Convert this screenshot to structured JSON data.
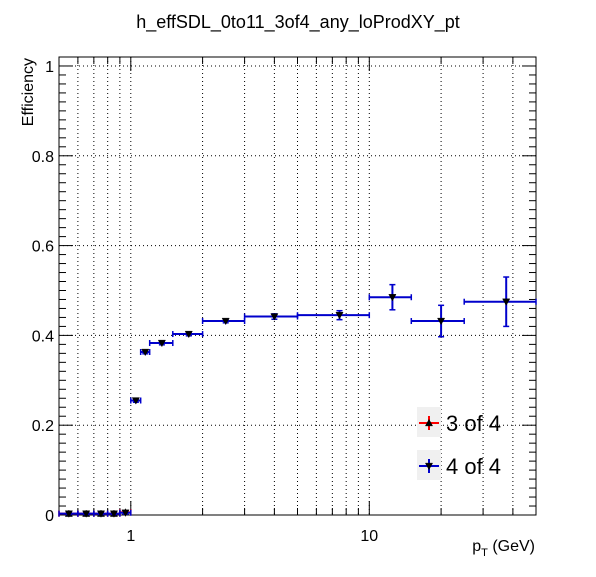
{
  "chart_data": {
    "type": "scatter",
    "title": "h_effSDL_0to11_3of4_any_loProdXY_pt",
    "xlabel_main": "p",
    "xlabel_sub": "T",
    "xlabel_unit": " (GeV)",
    "ylabel": "Efficiency",
    "xscale": "log",
    "xlim": [
      0.5,
      50
    ],
    "ylim": [
      0,
      1.02
    ],
    "grid": true,
    "x_tick_labels": [
      {
        "value": 1,
        "label": "1"
      },
      {
        "value": 10,
        "label": "10"
      }
    ],
    "y_tick_labels": [
      {
        "value": 0,
        "label": "0"
      },
      {
        "value": 0.2,
        "label": "0.2"
      },
      {
        "value": 0.4,
        "label": "0.4"
      },
      {
        "value": 0.6,
        "label": "0.6"
      },
      {
        "value": 0.8,
        "label": "0.8"
      },
      {
        "value": 1,
        "label": "1"
      }
    ],
    "legend_position": "bottom-right",
    "series": [
      {
        "name": "3 of 4",
        "color": "#ff0000",
        "marker": "triangle-up",
        "points": [
          {
            "x": 0.55,
            "xlo": 0.5,
            "xhi": 0.6,
            "y": 0.003,
            "ylo": 0.002,
            "yhi": 0.002
          },
          {
            "x": 0.65,
            "xlo": 0.6,
            "xhi": 0.7,
            "y": 0.003,
            "ylo": 0.002,
            "yhi": 0.002
          },
          {
            "x": 0.75,
            "xlo": 0.7,
            "xhi": 0.8,
            "y": 0.003,
            "ylo": 0.002,
            "yhi": 0.002
          },
          {
            "x": 0.85,
            "xlo": 0.8,
            "xhi": 0.9,
            "y": 0.003,
            "ylo": 0.002,
            "yhi": 0.002
          },
          {
            "x": 0.95,
            "xlo": 0.9,
            "xhi": 1.0,
            "y": 0.006,
            "ylo": 0.003,
            "yhi": 0.003
          }
        ]
      },
      {
        "name": "4 of 4",
        "color": "#0000cc",
        "marker": "triangle-down",
        "points": [
          {
            "x": 0.55,
            "xlo": 0.5,
            "xhi": 0.6,
            "y": 0.003,
            "ylo": 0.002,
            "yhi": 0.002
          },
          {
            "x": 0.65,
            "xlo": 0.6,
            "xhi": 0.7,
            "y": 0.003,
            "ylo": 0.002,
            "yhi": 0.002
          },
          {
            "x": 0.75,
            "xlo": 0.7,
            "xhi": 0.8,
            "y": 0.003,
            "ylo": 0.002,
            "yhi": 0.002
          },
          {
            "x": 0.85,
            "xlo": 0.8,
            "xhi": 0.9,
            "y": 0.003,
            "ylo": 0.002,
            "yhi": 0.002
          },
          {
            "x": 0.95,
            "xlo": 0.9,
            "xhi": 1.0,
            "y": 0.005,
            "ylo": 0.003,
            "yhi": 0.003
          },
          {
            "x": 1.05,
            "xlo": 1.0,
            "xhi": 1.1,
            "y": 0.255,
            "ylo": 0.004,
            "yhi": 0.004
          },
          {
            "x": 1.15,
            "xlo": 1.1,
            "xhi": 1.2,
            "y": 0.363,
            "ylo": 0.004,
            "yhi": 0.004
          },
          {
            "x": 1.35,
            "xlo": 1.2,
            "xhi": 1.5,
            "y": 0.383,
            "ylo": 0.004,
            "yhi": 0.004
          },
          {
            "x": 1.75,
            "xlo": 1.5,
            "xhi": 2.0,
            "y": 0.403,
            "ylo": 0.004,
            "yhi": 0.004
          },
          {
            "x": 2.5,
            "xlo": 2.0,
            "xhi": 3.0,
            "y": 0.432,
            "ylo": 0.004,
            "yhi": 0.004
          },
          {
            "x": 4.0,
            "xlo": 3.0,
            "xhi": 5.0,
            "y": 0.442,
            "ylo": 0.006,
            "yhi": 0.006
          },
          {
            "x": 7.5,
            "xlo": 5.0,
            "xhi": 10.0,
            "y": 0.445,
            "ylo": 0.01,
            "yhi": 0.01
          },
          {
            "x": 12.5,
            "xlo": 10.0,
            "xhi": 15.0,
            "y": 0.485,
            "ylo": 0.028,
            "yhi": 0.028
          },
          {
            "x": 20.0,
            "xlo": 15.0,
            "xhi": 25.0,
            "y": 0.432,
            "ylo": 0.035,
            "yhi": 0.035
          },
          {
            "x": 37.5,
            "xlo": 25.0,
            "xhi": 50.0,
            "y": 0.475,
            "ylo": 0.055,
            "yhi": 0.055
          }
        ]
      }
    ]
  }
}
